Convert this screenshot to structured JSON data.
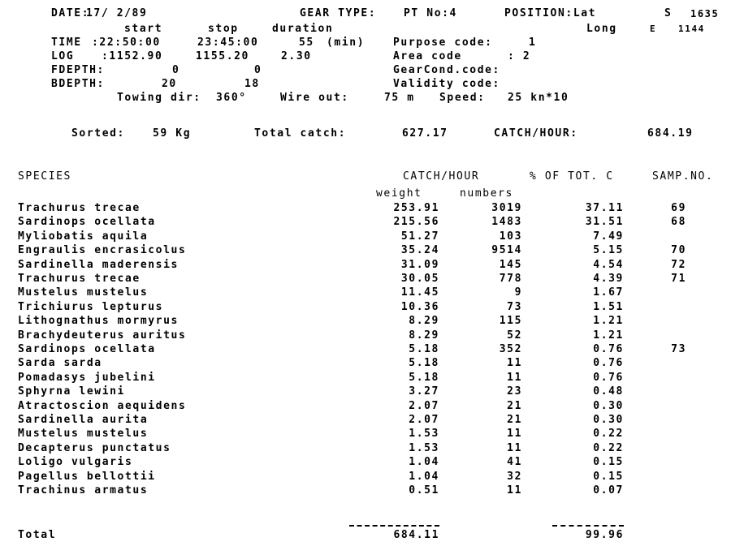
{
  "header": {
    "date_label": "DATE:",
    "date": "17/ 2/89",
    "gear_type_label": "GEAR TYPE:",
    "gear_type": "PT No:4",
    "position_label": "POSITION:Lat",
    "lat_hemi": "S",
    "lat": "1635",
    "long_label": "Long",
    "long_hemi": "E",
    "long": "1144",
    "col_start": "start",
    "col_stop": "stop",
    "col_duration": "duration",
    "time_label": "TIME",
    "time_start": ":22:50:00",
    "time_stop": "23:45:00",
    "time_duration": "55",
    "time_unit": "(min)",
    "log_label": "LOG",
    "log_start": ":1152.90",
    "log_stop": "1155.20",
    "log_duration": "2.30",
    "fdepth_label": "FDEPTH:",
    "fdepth_start": "0",
    "fdepth_stop": "0",
    "bdepth_label": "BDEPTH:",
    "bdepth_start": "20",
    "bdepth_stop": "18",
    "purpose_label": "Purpose code:",
    "purpose": "1",
    "area_label": "Area code",
    "area": ": 2",
    "gearcond_label": "GearCond.code:",
    "validity_label": "Validity code:",
    "towing_label": "Towing dir:",
    "towing": "360°",
    "wire_label": "Wire out:",
    "wire": "75 m",
    "speed_label": "Speed:",
    "speed": "25 kn*10"
  },
  "summary": {
    "sorted_label": "Sorted:",
    "sorted": "59 Kg",
    "total_catch_label": "Total catch:",
    "total_catch": "627.17",
    "catch_hour_label": "CATCH/HOUR:",
    "catch_hour": "684.19"
  },
  "table": {
    "species_header": "SPECIES",
    "catch_hour_header": "CATCH/HOUR",
    "pct_header": "% OF TOT. C",
    "samp_header": "SAMP.NO.",
    "weight_header": "weight",
    "numbers_header": "numbers",
    "rows": [
      {
        "species": "Trachurus trecae",
        "weight": "253.91",
        "numbers": "3019",
        "pct": "37.11",
        "samp": "69"
      },
      {
        "species": "Sardinops ocellata",
        "weight": "215.56",
        "numbers": "1483",
        "pct": "31.51",
        "samp": "68"
      },
      {
        "species": "Myliobatis aquila",
        "weight": "51.27",
        "numbers": "103",
        "pct": "7.49",
        "samp": ""
      },
      {
        "species": "Engraulis encrasicolus",
        "weight": "35.24",
        "numbers": "9514",
        "pct": "5.15",
        "samp": "70"
      },
      {
        "species": "Sardinella maderensis",
        "weight": "31.09",
        "numbers": "145",
        "pct": "4.54",
        "samp": "72"
      },
      {
        "species": "Trachurus trecae",
        "weight": "30.05",
        "numbers": "778",
        "pct": "4.39",
        "samp": "71"
      },
      {
        "species": "Mustelus mustelus",
        "weight": "11.45",
        "numbers": "9",
        "pct": "1.67",
        "samp": ""
      },
      {
        "species": "Trichiurus lepturus",
        "weight": "10.36",
        "numbers": "73",
        "pct": "1.51",
        "samp": ""
      },
      {
        "species": "Lithognathus mormyrus",
        "weight": "8.29",
        "numbers": "115",
        "pct": "1.21",
        "samp": ""
      },
      {
        "species": "Brachydeuterus auritus",
        "weight": "8.29",
        "numbers": "52",
        "pct": "1.21",
        "samp": ""
      },
      {
        "species": "Sardinops ocellata",
        "weight": "5.18",
        "numbers": "352",
        "pct": "0.76",
        "samp": "73"
      },
      {
        "species": "Sarda sarda",
        "weight": "5.18",
        "numbers": "11",
        "pct": "0.76",
        "samp": ""
      },
      {
        "species": "Pomadasys jubelini",
        "weight": "5.18",
        "numbers": "11",
        "pct": "0.76",
        "samp": ""
      },
      {
        "species": "Sphyrna lewini",
        "weight": "3.27",
        "numbers": "23",
        "pct": "0.48",
        "samp": ""
      },
      {
        "species": "Atractoscion aequidens",
        "weight": "2.07",
        "numbers": "21",
        "pct": "0.30",
        "samp": ""
      },
      {
        "species": "Sardinella aurita",
        "weight": "2.07",
        "numbers": "21",
        "pct": "0.30",
        "samp": ""
      },
      {
        "species": "Mustelus mustelus",
        "weight": "1.53",
        "numbers": "11",
        "pct": "0.22",
        "samp": ""
      },
      {
        "species": "Decapterus punctatus",
        "weight": "1.53",
        "numbers": "11",
        "pct": "0.22",
        "samp": ""
      },
      {
        "species": "Loligo vulgaris",
        "weight": "1.04",
        "numbers": "41",
        "pct": "0.15",
        "samp": ""
      },
      {
        "species": "Pagellus bellottii",
        "weight": "1.04",
        "numbers": "32",
        "pct": "0.15",
        "samp": ""
      },
      {
        "species": "Trachinus armatus",
        "weight": "0.51",
        "numbers": "11",
        "pct": "0.07",
        "samp": ""
      }
    ],
    "total_label": "Total",
    "total_weight": "684.11",
    "total_pct": "99.96"
  }
}
